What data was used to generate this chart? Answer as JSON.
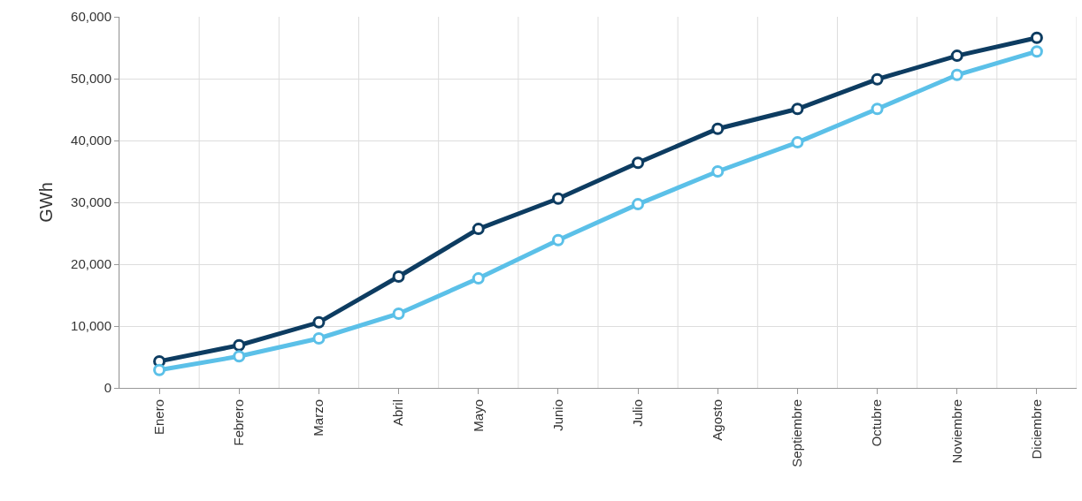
{
  "chart_data": {
    "type": "line",
    "ylabel": "GWh",
    "categories": [
      "Enero",
      "Febrero",
      "Marzo",
      "Abril",
      "Mayo",
      "Junio",
      "Julio",
      "Agosto",
      "Septiembre",
      "Octubre",
      "Noviembre",
      "Diciembre"
    ],
    "series": [
      {
        "color": "#0d3c61",
        "values": [
          4300,
          6900,
          10600,
          18000,
          25700,
          30600,
          36400,
          41900,
          45100,
          49900,
          53700,
          56600
        ]
      },
      {
        "color": "#5bc0e8",
        "values": [
          2900,
          5100,
          8000,
          12000,
          17700,
          23900,
          29700,
          35000,
          39700,
          45100,
          50600,
          54400
        ]
      }
    ],
    "ylim": [
      0,
      60000
    ],
    "yticks": [
      {
        "value": 0,
        "label": "0"
      },
      {
        "value": 10000,
        "label": "10,000"
      },
      {
        "value": 20000,
        "label": "20,000"
      },
      {
        "value": 30000,
        "label": "30,000"
      },
      {
        "value": 40000,
        "label": "40,000"
      },
      {
        "value": 50000,
        "label": "50,000"
      },
      {
        "value": 60000,
        "label": "60,000"
      }
    ],
    "grid": true,
    "marker": "circle",
    "line_style": "solid"
  }
}
